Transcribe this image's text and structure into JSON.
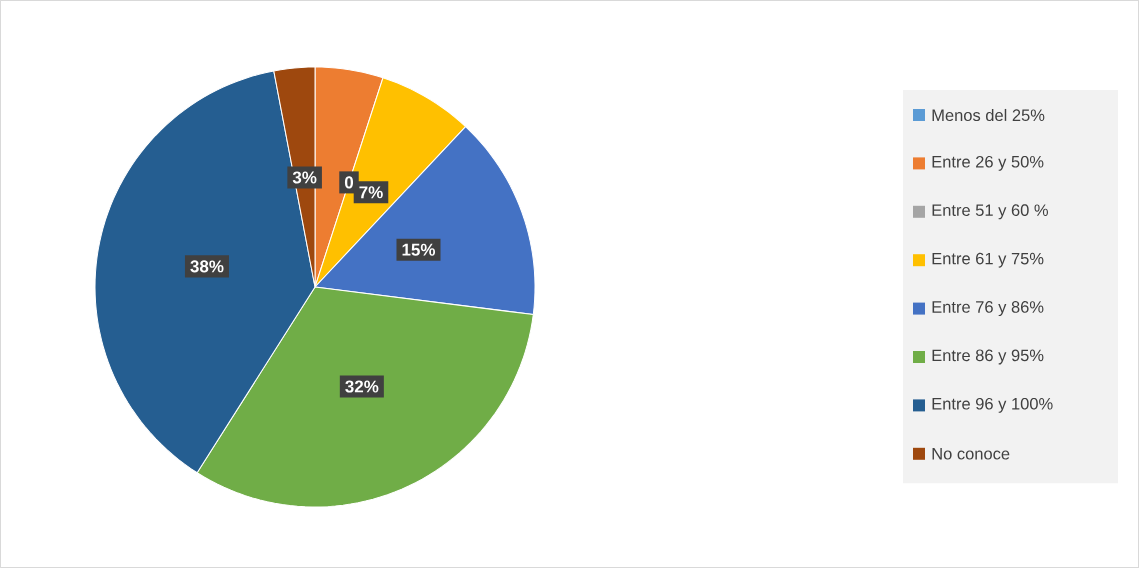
{
  "chart_data": {
    "type": "pie",
    "categories": [
      "Menos del 25%",
      "Entre 26 y 50%",
      "Entre 51 y 60 %",
      "Entre 61 y 75%",
      "Entre 76 y 86%",
      "Entre 86 y 95%",
      "Entre 96 y 100%",
      "No conoce"
    ],
    "values": [
      0,
      5,
      0,
      7,
      15,
      32,
      38,
      3
    ],
    "value_labels": [
      null,
      null,
      "0",
      "7%",
      "15%",
      "32%",
      "38%",
      "3%"
    ],
    "colors": [
      "#5b9bd5",
      "#ed7d31",
      "#a5a5a5",
      "#ffc000",
      "#4472c4",
      "#70ad47",
      "#255e91",
      "#9e480e"
    ],
    "legend": "right"
  }
}
